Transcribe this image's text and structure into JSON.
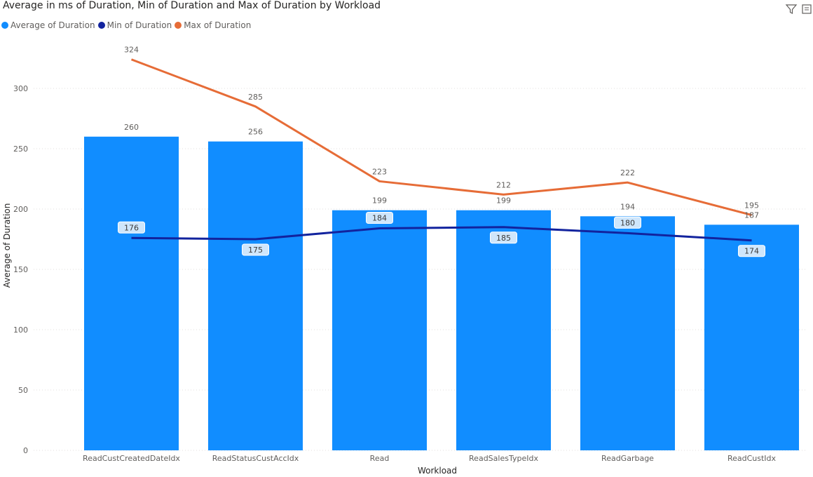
{
  "header": {
    "title": "Average in ms of Duration, Min of Duration and Max of Duration by Workload",
    "filter_icon": "filter-icon",
    "focus_icon": "focus-mode-icon"
  },
  "legend": [
    {
      "label": "Average of  Duration",
      "color": "#118DFF"
    },
    {
      "label": "Min of  Duration",
      "color": "#12239E"
    },
    {
      "label": "Max of  Duration",
      "color": "#E66C37"
    }
  ],
  "chart_data": {
    "type": "bar",
    "title": "Average in ms of Duration, Min of Duration and Max of Duration by Workload",
    "xlabel": "Workload",
    "ylabel": "Average of Duration",
    "ylim": [
      0,
      340
    ],
    "yticks": [
      0,
      50,
      100,
      150,
      200,
      250,
      300
    ],
    "grid": true,
    "legend_position": "top-left",
    "categories": [
      "ReadCustCreatedDateIdx",
      "ReadStatusCustAccIdx",
      "Read",
      "ReadSalesTypeIdx",
      "ReadGarbage",
      "ReadCustIdx"
    ],
    "series": [
      {
        "name": "Average of  Duration",
        "type": "bar",
        "color": "#118DFF",
        "values": [
          260,
          256,
          199,
          199,
          194,
          187
        ]
      },
      {
        "name": "Min of  Duration",
        "type": "line",
        "color": "#12239E",
        "values": [
          176,
          175,
          184,
          185,
          180,
          174
        ]
      },
      {
        "name": "Max of  Duration",
        "type": "line",
        "color": "#E66C37",
        "values": [
          324,
          285,
          223,
          212,
          222,
          195
        ]
      }
    ]
  }
}
